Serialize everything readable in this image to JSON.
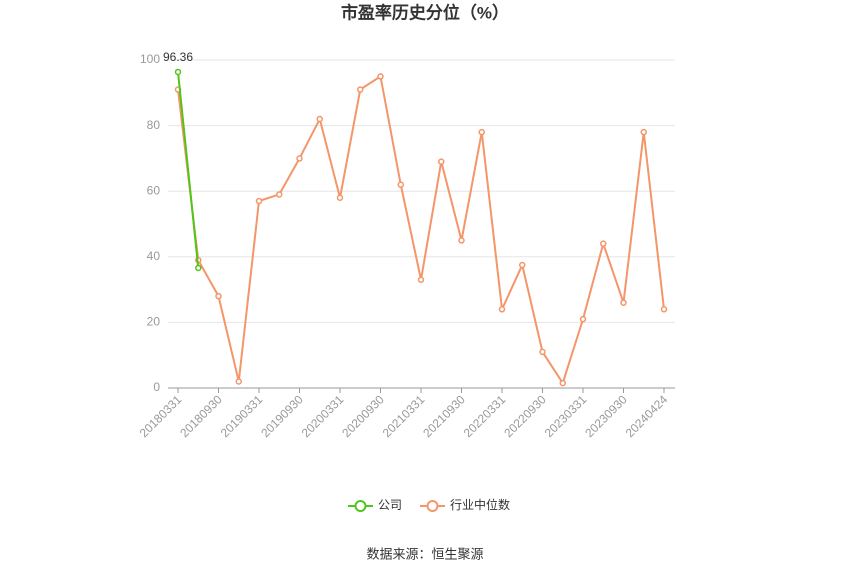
{
  "chart_data": {
    "type": "line",
    "title": "市盈率历史分位（%）",
    "categories": [
      "20180331",
      null,
      "20180930",
      null,
      "20190331",
      null,
      "20190930",
      null,
      "20200331",
      null,
      "20200930",
      null,
      "20210331",
      null,
      "20210930",
      null,
      "20220331",
      null,
      "20220930",
      null,
      "20230331",
      null,
      "20230930",
      null,
      "20240424"
    ],
    "series": [
      {
        "name": "公司",
        "color": "#52c41a",
        "values": [
          96.36,
          36.6,
          null,
          null,
          null,
          null,
          null,
          null,
          null,
          null,
          null,
          null,
          null,
          null,
          null,
          null,
          null,
          null,
          null,
          null,
          null,
          null,
          null,
          null,
          null
        ],
        "value_labels": [
          "96.36",
          null,
          null,
          null,
          null,
          null,
          null,
          null,
          null,
          null,
          null,
          null,
          null,
          null,
          null,
          null,
          null,
          null,
          null,
          null,
          null,
          null,
          null,
          null,
          null
        ]
      },
      {
        "name": "行业中位数",
        "color": "#f4956a",
        "values": [
          91,
          39,
          28,
          2,
          57,
          59,
          70,
          82,
          58,
          91,
          95,
          62,
          33,
          69,
          45,
          78,
          24,
          37.5,
          11,
          1.5,
          21,
          44,
          26,
          78,
          24
        ]
      }
    ],
    "ylim": [
      0,
      100
    ],
    "yticks": [
      0,
      20,
      40,
      60,
      80,
      100
    ],
    "grid": true,
    "legend": "bottom",
    "source": "数据来源：恒生聚源"
  }
}
